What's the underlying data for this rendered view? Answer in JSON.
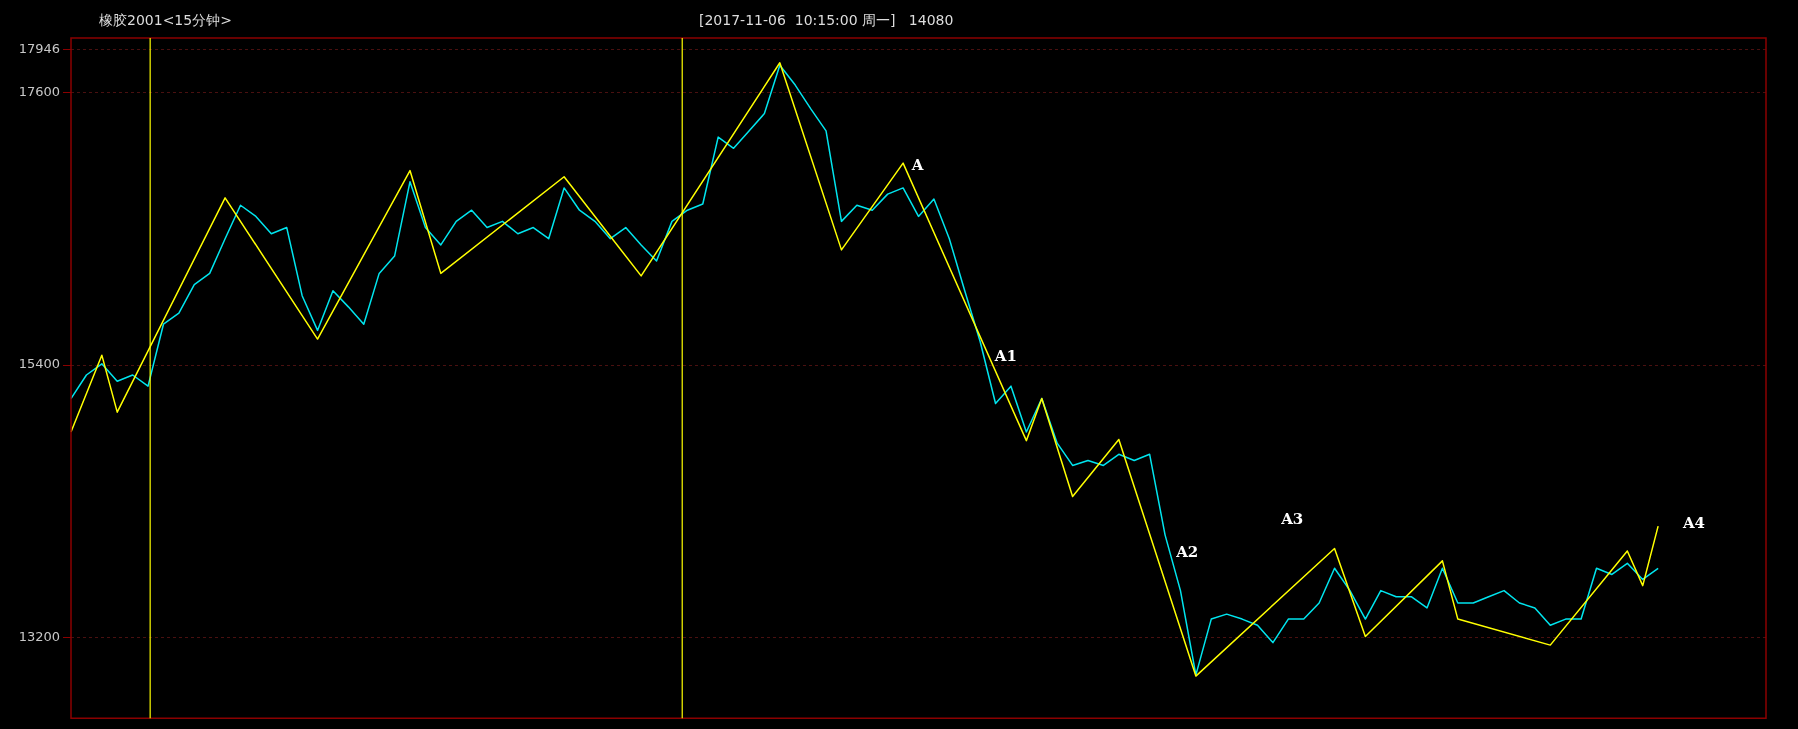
{
  "chart_data": {
    "type": "line",
    "title": "橡胶2001<15分钟>",
    "subtitle": "[2017-11-06  10:15:00 周一]   14080",
    "categories": [
      null,
      null,
      null,
      null,
      null,
      null,
      null,
      null,
      null,
      null,
      null,
      null,
      null,
      null,
      null,
      null,
      null,
      null,
      null,
      null,
      null,
      null,
      null,
      null,
      null,
      null,
      null,
      null,
      null,
      null,
      null,
      null,
      null,
      null,
      null,
      null,
      null,
      null,
      null,
      null,
      null,
      null,
      null,
      null,
      null,
      null,
      null,
      null,
      null,
      null,
      null,
      null,
      null,
      null,
      null,
      null,
      null,
      null,
      null,
      null,
      null,
      null,
      null,
      null,
      null,
      null,
      null,
      null,
      null,
      null,
      null,
      null,
      null,
      null,
      null,
      null,
      null,
      null,
      null,
      null,
      null,
      null,
      null,
      null,
      null,
      null,
      null,
      null,
      null,
      null,
      null,
      null,
      null,
      null,
      null,
      null,
      null,
      null,
      null,
      null,
      null,
      null,
      null,
      null,
      null,
      null,
      null,
      null,
      null,
      null,
      null
    ],
    "ylim": [
      12550,
      18040
    ],
    "yticks": [
      13200,
      15400,
      17600,
      {
        "value": 17946,
        "label": "17946"
      }
    ],
    "tick_labels": "y",
    "grid": "y",
    "legend": false,
    "marker": "none",
    "series": [
      {
        "color": "#00e5ee",
        "values": [
          15130,
          15320,
          15410,
          15270,
          15320,
          15230,
          15730,
          15820,
          16050,
          16140,
          16420,
          16690,
          16600,
          16460,
          16510,
          15960,
          15680,
          16000,
          15870,
          15730,
          16140,
          16280,
          16880,
          16510,
          16370,
          16560,
          16650,
          16510,
          16560,
          16460,
          16510,
          16420,
          16830,
          16650,
          16560,
          16420,
          16510,
          16370,
          16240,
          16560,
          16650,
          16700,
          17240,
          17150,
          17290,
          17430,
          17820,
          17660,
          17470,
          17290,
          16560,
          16690,
          16650,
          16780,
          16830,
          16600,
          16740,
          16420,
          16000,
          15590,
          15090,
          15230,
          14860,
          15130,
          14770,
          14590,
          14630,
          14590,
          14680,
          14630,
          14680,
          14030,
          13580,
          12900,
          13350,
          13390,
          13350,
          13300,
          13160,
          13350,
          13350,
          13480,
          13760,
          13580,
          13350,
          13580,
          13530,
          13530,
          13440,
          13760,
          13480,
          13480,
          13530,
          13580,
          13480,
          13440,
          13300,
          13350,
          13350,
          13760,
          13710,
          13800,
          13670,
          13760,
          null,
          null,
          null,
          null,
          null,
          null,
          null
        ]
      },
      {
        "type": "line",
        "color": "#ffff00",
        "values": [
          14860,
          null,
          15480,
          15020,
          null,
          null,
          null,
          null,
          null,
          null,
          16750,
          null,
          null,
          null,
          null,
          null,
          15610,
          null,
          null,
          null,
          null,
          null,
          16970,
          null,
          16140,
          null,
          null,
          null,
          null,
          null,
          null,
          null,
          16920,
          null,
          null,
          null,
          null,
          16120,
          null,
          null,
          null,
          null,
          null,
          null,
          null,
          null,
          17840,
          null,
          null,
          null,
          16330,
          null,
          null,
          null,
          17030,
          null,
          null,
          null,
          null,
          null,
          null,
          null,
          14790,
          15130,
          null,
          14340,
          null,
          null,
          14800,
          null,
          null,
          null,
          null,
          12890,
          null,
          null,
          null,
          null,
          null,
          null,
          null,
          null,
          13920,
          null,
          13210,
          null,
          null,
          null,
          null,
          13820,
          13350,
          null,
          null,
          null,
          null,
          null,
          13140,
          null,
          null,
          null,
          null,
          13900,
          13620,
          14100,
          null,
          null,
          null,
          null,
          null,
          null,
          null
        ]
      }
    ],
    "annotations": [
      "A",
      "A1",
      "A2",
      "A3",
      "A4"
    ]
  }
}
